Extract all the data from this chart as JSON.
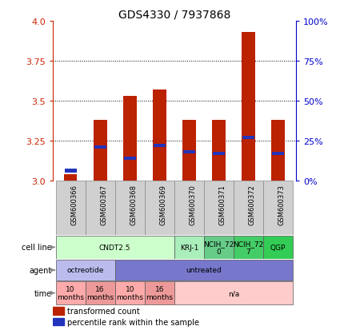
{
  "title": "GDS4330 / 7937868",
  "samples": [
    "GSM600366",
    "GSM600367",
    "GSM600368",
    "GSM600369",
    "GSM600370",
    "GSM600371",
    "GSM600372",
    "GSM600373"
  ],
  "bar_tops": [
    3.04,
    3.38,
    3.53,
    3.57,
    3.38,
    3.38,
    3.93,
    3.38
  ],
  "bar_bottoms": [
    3.0,
    3.0,
    3.0,
    3.0,
    3.0,
    3.0,
    3.0,
    3.0
  ],
  "blue_values": [
    3.065,
    3.21,
    3.14,
    3.22,
    3.18,
    3.17,
    3.27,
    3.17
  ],
  "ylim": [
    3.0,
    4.0
  ],
  "y_ticks_left": [
    3.0,
    3.25,
    3.5,
    3.75,
    4.0
  ],
  "y_ticks_right_pct": [
    0,
    25,
    50,
    75,
    100
  ],
  "bar_color": "#bb2200",
  "blue_color": "#2233bb",
  "cell_line_groups": [
    {
      "label": "CNDT2.5",
      "start": 0,
      "end": 3,
      "color": "#ccffcc"
    },
    {
      "label": "KRJ-1",
      "start": 4,
      "end": 4,
      "color": "#aaeebb"
    },
    {
      "label": "NCIH_72\n0",
      "start": 5,
      "end": 5,
      "color": "#66cc88"
    },
    {
      "label": "NCIH_72\n7",
      "start": 6,
      "end": 6,
      "color": "#44cc66"
    },
    {
      "label": "QGP",
      "start": 7,
      "end": 7,
      "color": "#33cc55"
    }
  ],
  "agent_groups": [
    {
      "label": "octreotide",
      "start": 0,
      "end": 1,
      "color": "#bbbbee"
    },
    {
      "label": "untreated",
      "start": 2,
      "end": 7,
      "color": "#7777cc"
    }
  ],
  "time_groups": [
    {
      "label": "10\nmonths",
      "start": 0,
      "end": 0,
      "color": "#ffaaaa"
    },
    {
      "label": "16\nmonths",
      "start": 1,
      "end": 1,
      "color": "#ee9999"
    },
    {
      "label": "10\nmonths",
      "start": 2,
      "end": 2,
      "color": "#ffaaaa"
    },
    {
      "label": "16\nmonths",
      "start": 3,
      "end": 3,
      "color": "#ee9999"
    },
    {
      "label": "n/a",
      "start": 4,
      "end": 7,
      "color": "#ffcccc"
    }
  ],
  "legend_red_label": "transformed count",
  "legend_blue_label": "percentile rank within the sample"
}
